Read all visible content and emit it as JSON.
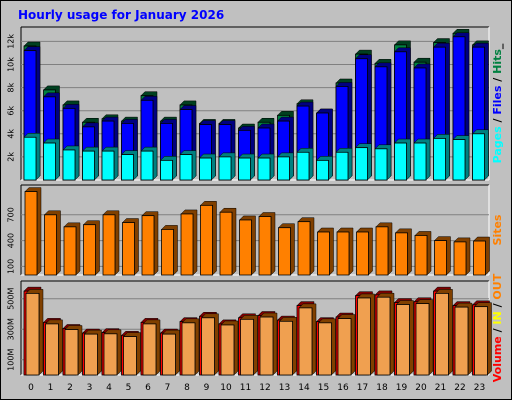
{
  "title": "Hourly usage for January 2026",
  "colors": {
    "title": "#0000ff",
    "pages": "#00ffff",
    "files": "#0000ff",
    "hits": "#008040",
    "sites": "#ff8000",
    "volume": "#ff0000",
    "in": "#ffff00",
    "out": "#ff8000",
    "kbytes": "#ff0000",
    "plot_bg": "#c0c0c0",
    "gridline": "#808080"
  },
  "chart_data": [
    {
      "type": "bar",
      "name": "pages-files-hits",
      "side_label": [
        "Pages",
        " / ",
        "Files",
        " / ",
        "Hits",
        "_"
      ],
      "categories": [
        "0",
        "1",
        "2",
        "3",
        "4",
        "5",
        "6",
        "7",
        "8",
        "9",
        "10",
        "11",
        "12",
        "13",
        "14",
        "15",
        "16",
        "17",
        "18",
        "19",
        "20",
        "21",
        "22",
        "23"
      ],
      "ylim": [
        0,
        12900
      ],
      "ticks": [
        {
          "value": 2000,
          "label": "2k"
        },
        {
          "value": 4000,
          "label": "4k"
        },
        {
          "value": 6000,
          "label": "6k"
        },
        {
          "value": 8000,
          "label": "8k"
        },
        {
          "value": 10000,
          "label": "10k"
        },
        {
          "value": 12000,
          "label": "12k"
        }
      ],
      "series": [
        {
          "name": "Hits",
          "values": [
            11600,
            7800,
            6500,
            5000,
            5300,
            5100,
            7300,
            5100,
            6500,
            4900,
            4900,
            4500,
            5000,
            5600,
            6600,
            5800,
            8400,
            10900,
            10100,
            11700,
            10200,
            11900,
            12700,
            11700
          ]
        },
        {
          "name": "Files",
          "values": [
            11200,
            7200,
            6200,
            4600,
            5100,
            4900,
            6900,
            4900,
            6100,
            4800,
            4800,
            4300,
            4500,
            5100,
            6400,
            5800,
            8100,
            10500,
            9800,
            11100,
            9700,
            11500,
            12400,
            11500
          ]
        },
        {
          "name": "Pages",
          "values": [
            3700,
            3200,
            2600,
            2500,
            2500,
            2200,
            2500,
            1700,
            2200,
            1900,
            2000,
            1900,
            1900,
            2000,
            2400,
            1700,
            2400,
            2800,
            2700,
            3200,
            3200,
            3600,
            3500,
            4000
          ]
        }
      ]
    },
    {
      "type": "bar",
      "name": "sites",
      "side_label": [
        "Sites"
      ],
      "categories": [
        "0",
        "1",
        "2",
        "3",
        "4",
        "5",
        "6",
        "7",
        "8",
        "9",
        "10",
        "11",
        "12",
        "13",
        "14",
        "15",
        "16",
        "17",
        "18",
        "19",
        "20",
        "21",
        "22",
        "23"
      ],
      "ylim": [
        0,
        1000
      ],
      "ticks": [
        {
          "value": 100,
          "label": "100"
        },
        {
          "value": 400,
          "label": "400"
        },
        {
          "value": 700,
          "label": "700"
        }
      ],
      "series": [
        {
          "name": "Sites",
          "values": [
            970,
            700,
            560,
            585,
            700,
            610,
            690,
            530,
            710,
            810,
            730,
            640,
            680,
            550,
            620,
            500,
            500,
            500,
            560,
            490,
            460,
            400,
            385,
            395
          ]
        }
      ]
    },
    {
      "type": "bar",
      "name": "volume",
      "side_label": [
        "Volume",
        " / ",
        "IN",
        " / ",
        "OUT"
      ],
      "categories": [
        "0",
        "1",
        "2",
        "3",
        "4",
        "5",
        "6",
        "7",
        "8",
        "9",
        "10",
        "11",
        "12",
        "13",
        "14",
        "15",
        "16",
        "17",
        "18",
        "19",
        "20",
        "21",
        "22",
        "23"
      ],
      "ylim": [
        0,
        590
      ],
      "ticks": [
        {
          "value": 100,
          "label": "100M"
        },
        {
          "value": 300,
          "label": "300M"
        },
        {
          "value": 500,
          "label": "500M"
        }
      ],
      "series": [
        {
          "name": "Volume",
          "values": [
            550,
            345,
            305,
            275,
            278,
            260,
            345,
            275,
            350,
            385,
            335,
            375,
            390,
            360,
            455,
            350,
            380,
            520,
            525,
            475,
            480,
            550,
            455,
            460
          ]
        },
        {
          "name": "OUT",
          "values": [
            535,
            335,
            298,
            268,
            270,
            252,
            335,
            268,
            342,
            375,
            328,
            365,
            380,
            352,
            440,
            342,
            370,
            505,
            510,
            462,
            468,
            535,
            445,
            448
          ]
        }
      ]
    }
  ]
}
